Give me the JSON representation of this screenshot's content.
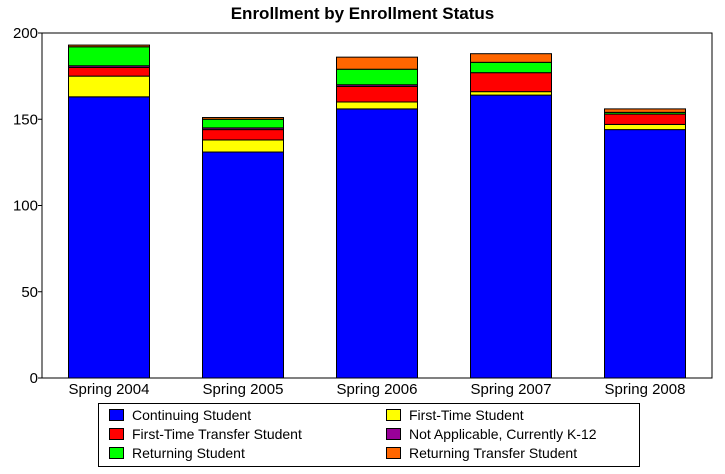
{
  "chart_data": {
    "type": "bar",
    "stacked": true,
    "title": "Enrollment by Enrollment Status",
    "xlabel": "",
    "ylabel": "",
    "ylim": [
      0,
      200
    ],
    "yticks": [
      0,
      50,
      100,
      150,
      200
    ],
    "grid": false,
    "legend_position": "bottom",
    "categories": [
      "Spring 2004",
      "Spring 2005",
      "Spring 2006",
      "Spring 2007",
      "Spring 2008"
    ],
    "series": [
      {
        "name": "Continuing Student",
        "color": "#0000ff",
        "values": [
          163,
          131,
          156,
          164,
          144
        ]
      },
      {
        "name": "First-Time Student",
        "color": "#ffff00",
        "values": [
          12,
          7,
          4,
          2,
          3
        ]
      },
      {
        "name": "First-Time Transfer Student",
        "color": "#ff0000",
        "values": [
          5,
          6,
          9,
          11,
          6
        ]
      },
      {
        "name": "Not Applicable, Currently K-12",
        "color": "#990099",
        "values": [
          1,
          1,
          1,
          0,
          0
        ]
      },
      {
        "name": "Returning Student",
        "color": "#00ff00",
        "values": [
          11,
          5,
          9,
          6,
          1
        ]
      },
      {
        "name": "Returning Transfer Student",
        "color": "#ff6600",
        "values": [
          1,
          1,
          7,
          5,
          2
        ]
      }
    ]
  }
}
